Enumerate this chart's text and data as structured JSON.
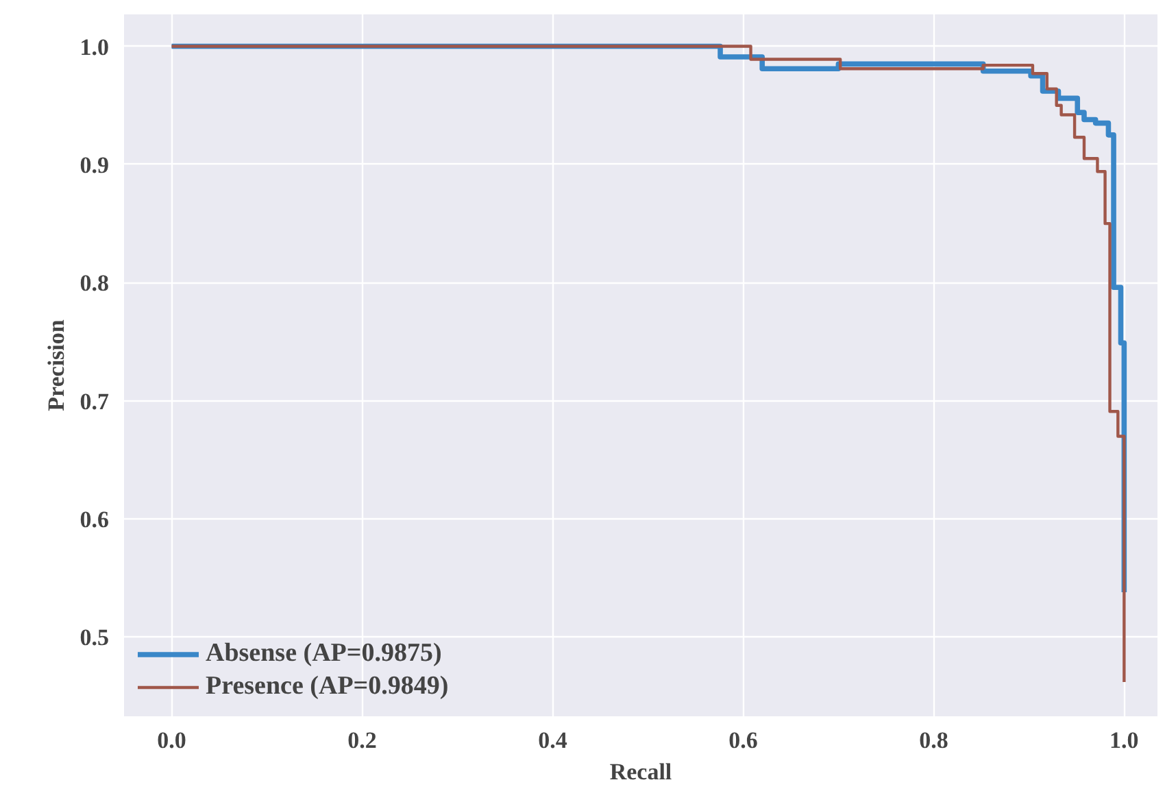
{
  "chart_data": {
    "type": "step",
    "xlabel": "Recall",
    "ylabel": "Precision",
    "xlim": [
      -0.05,
      1.035
    ],
    "ylim": [
      0.433,
      1.027
    ],
    "xticks": [
      {
        "value": 0,
        "label": "0.0"
      },
      0.2,
      0.4,
      0.6,
      0.8,
      {
        "value": 1,
        "label": "1.0"
      }
    ],
    "yticks": [
      0.5,
      0.6,
      0.7,
      0.8,
      0.9,
      {
        "value": 1,
        "label": "1.0"
      }
    ],
    "grid": true,
    "legend": "bottom left",
    "line_style": "solid",
    "marker": "none",
    "series": [
      {
        "name": "Absense (AP=0.9875)",
        "color": "#3a87c8",
        "x": [
          0,
          0.576,
          0.62,
          0.7,
          0.852,
          0.902,
          0.9145,
          0.931,
          0.951,
          0.958,
          0.97,
          0.9835,
          0.989,
          0.9965,
          1.0
        ],
        "values": [
          1.0,
          0.991,
          0.981,
          0.985,
          0.979,
          0.975,
          0.962,
          0.956,
          0.944,
          0.938,
          0.935,
          0.925,
          0.796,
          0.749,
          0.538
        ]
      },
      {
        "name": "Presence (AP=0.9849)",
        "color": "#a0574a",
        "x": [
          0,
          0.608,
          0.702,
          0.852,
          0.904,
          0.919,
          0.929,
          0.934,
          0.948,
          0.958,
          0.972,
          0.98,
          0.985,
          0.9935,
          1.0
        ],
        "values": [
          1.0,
          0.989,
          0.981,
          0.984,
          0.977,
          0.964,
          0.95,
          0.942,
          0.923,
          0.905,
          0.894,
          0.85,
          0.691,
          0.67,
          0.462
        ]
      }
    ]
  }
}
